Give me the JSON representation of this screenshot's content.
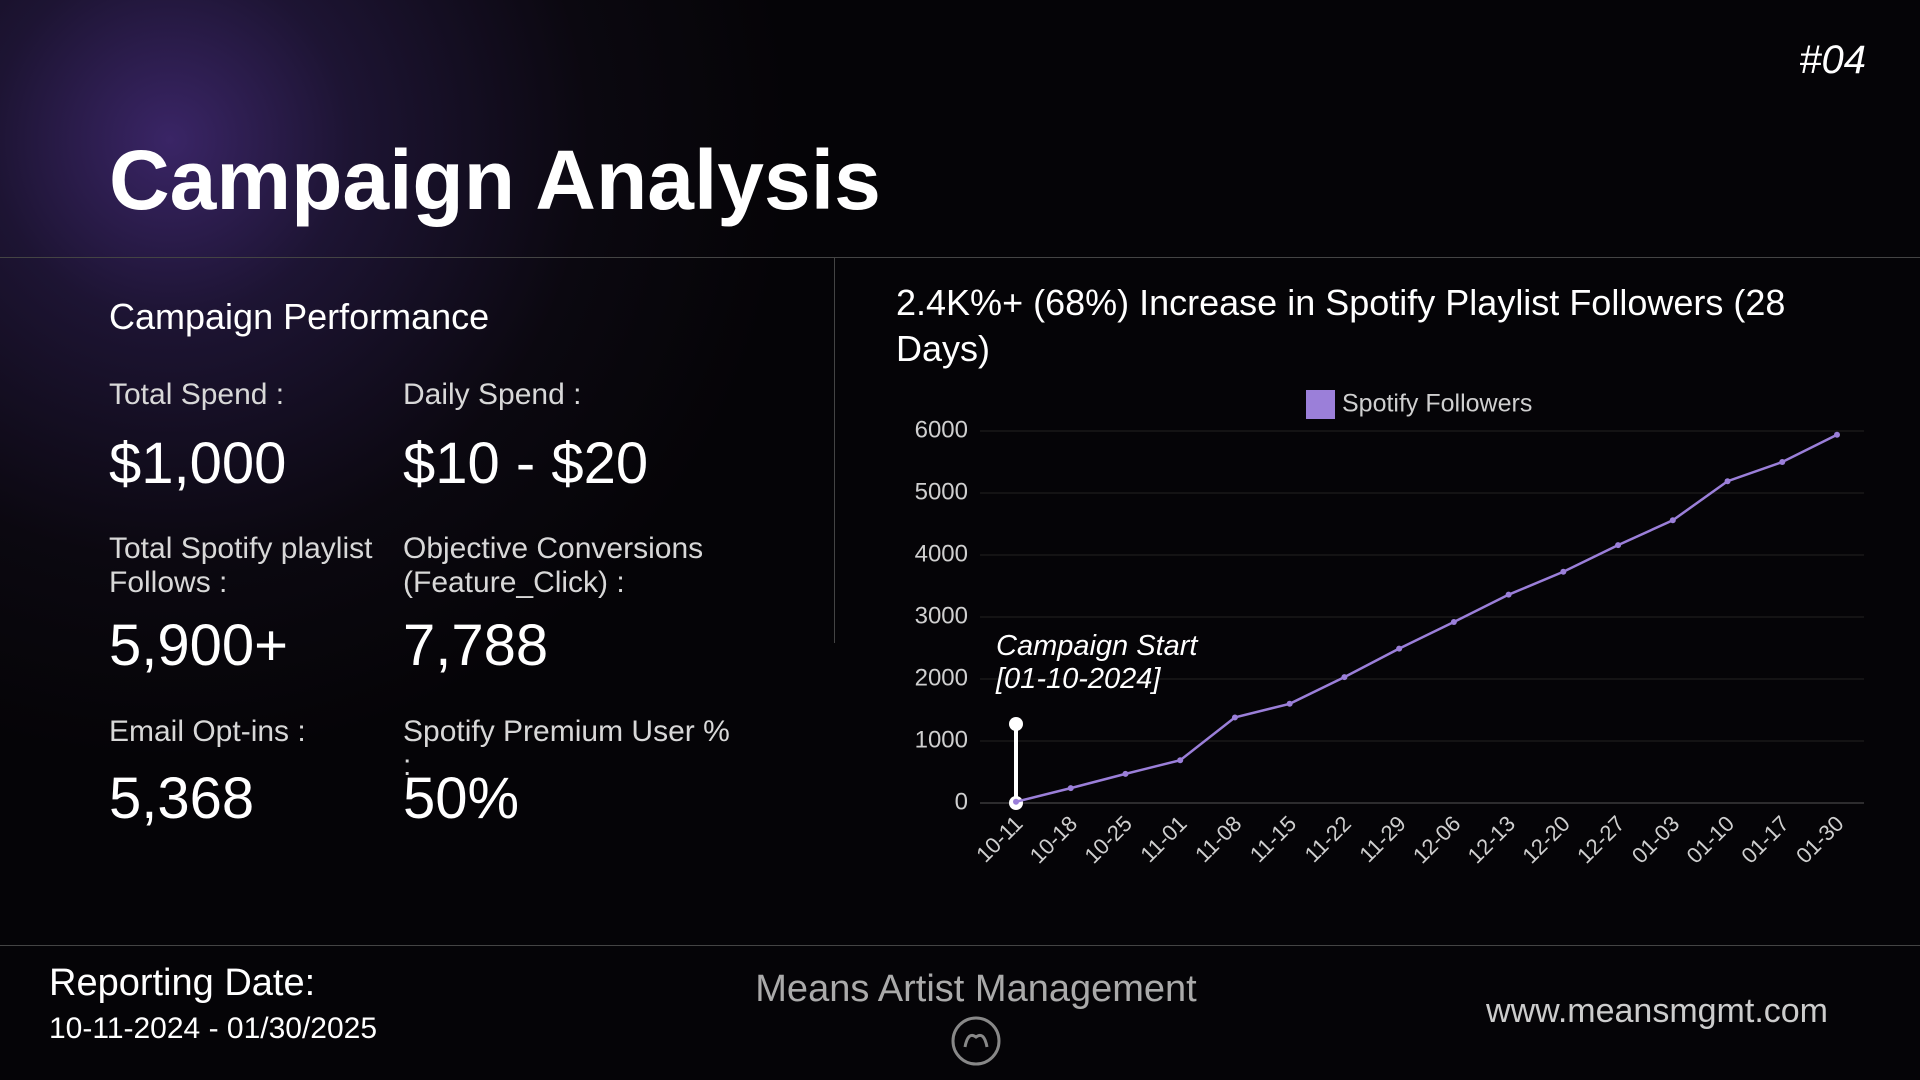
{
  "header": {
    "page_number": "#04",
    "title": "Campaign Analysis"
  },
  "stats": {
    "title": "Campaign Performance",
    "items": [
      {
        "label": "Total Spend :",
        "value": "$1,000"
      },
      {
        "label": "Daily Spend :",
        "value": "$10 - $20"
      },
      {
        "label": "Total Spotify playlist Follows :",
        "value": "5,900+"
      },
      {
        "label": "Objective Conversions (Feature_Click) :",
        "value": "7,788"
      },
      {
        "label": "Email Opt-ins :",
        "value": "5,368"
      },
      {
        "label": "Spotify Premium User % :",
        "value": "50%"
      }
    ]
  },
  "chart_data": {
    "type": "line",
    "title": "2.4K%+ (68%) Increase in Spotify Playlist Followers (28 Days)",
    "categories": [
      "10-11",
      "10-18",
      "10-25",
      "11-01",
      "11-08",
      "11-15",
      "11-22",
      "11-29",
      "12-06",
      "12-13",
      "12-20",
      "12-27",
      "01-03",
      "01-10",
      "01-17",
      "01-30"
    ],
    "series": [
      {
        "name": "Spotify Followers",
        "color": "#9b7fd9",
        "values": [
          20,
          240,
          470,
          690,
          1380,
          1600,
          2030,
          2490,
          2920,
          3360,
          3730,
          4160,
          4560,
          5190,
          5500,
          5940
        ]
      }
    ],
    "ylim": [
      0,
      6000
    ],
    "yticks": [
      0,
      1000,
      2000,
      3000,
      4000,
      5000,
      6000
    ],
    "grid": true,
    "legend": "top",
    "annotations": [
      "Campaign Start",
      "[01-10-2024]"
    ]
  },
  "footer": {
    "reporting_label": "Reporting Date:",
    "reporting_dates": "10-11-2024 - 01/30/2025",
    "company": "Means Artist Management",
    "website": "www.meansmgmt.com"
  }
}
